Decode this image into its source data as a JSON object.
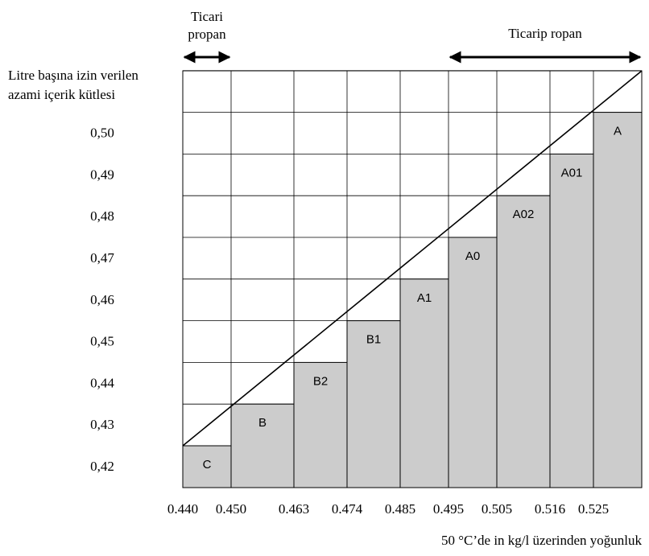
{
  "chart_data": {
    "type": "bar",
    "ylabel": [
      "Litre başına izin verilen",
      "azami içerik kütlesi"
    ],
    "xlabel": "50 °C’de in kg/l üzerinden yoğunluk",
    "x_ticks": [
      "0.440",
      "0.450",
      "0.463",
      "0.474",
      "0.485",
      "0.495",
      "0.505",
      "0.516",
      "0.525"
    ],
    "y_ticks": [
      "0,50",
      "0,49",
      "0,48",
      "0,47",
      "0,46",
      "0,45",
      "0,44",
      "0,43",
      "0,42"
    ],
    "y_tick_values": [
      0.5,
      0.49,
      0.48,
      0.47,
      0.46,
      0.45,
      0.44,
      0.43,
      0.42
    ],
    "x_range": [
      0.44,
      0.535
    ],
    "bars": [
      {
        "label": "C",
        "x_start": 0.44,
        "x_end": 0.45,
        "value": 0.42
      },
      {
        "label": "B",
        "x_start": 0.45,
        "x_end": 0.463,
        "value": 0.43
      },
      {
        "label": "B2",
        "x_start": 0.463,
        "x_end": 0.474,
        "value": 0.44
      },
      {
        "label": "B1",
        "x_start": 0.474,
        "x_end": 0.485,
        "value": 0.45
      },
      {
        "label": "A1",
        "x_start": 0.485,
        "x_end": 0.495,
        "value": 0.46
      },
      {
        "label": "A0",
        "x_start": 0.495,
        "x_end": 0.505,
        "value": 0.47
      },
      {
        "label": "A02",
        "x_start": 0.505,
        "x_end": 0.516,
        "value": 0.48
      },
      {
        "label": "A01",
        "x_start": 0.516,
        "x_end": 0.525,
        "value": 0.49
      },
      {
        "label": "A",
        "x_start": 0.525,
        "x_end": 0.535,
        "value": 0.5
      }
    ],
    "arrows": [
      {
        "label": [
          "Ticari",
          "propan"
        ],
        "x_start": 0.44,
        "x_end": 0.45
      },
      {
        "label": [
          "Ticarip ropan"
        ],
        "x_start": 0.495,
        "x_end": 0.535
      }
    ],
    "grid": true,
    "bar_color": "#cccccc"
  }
}
